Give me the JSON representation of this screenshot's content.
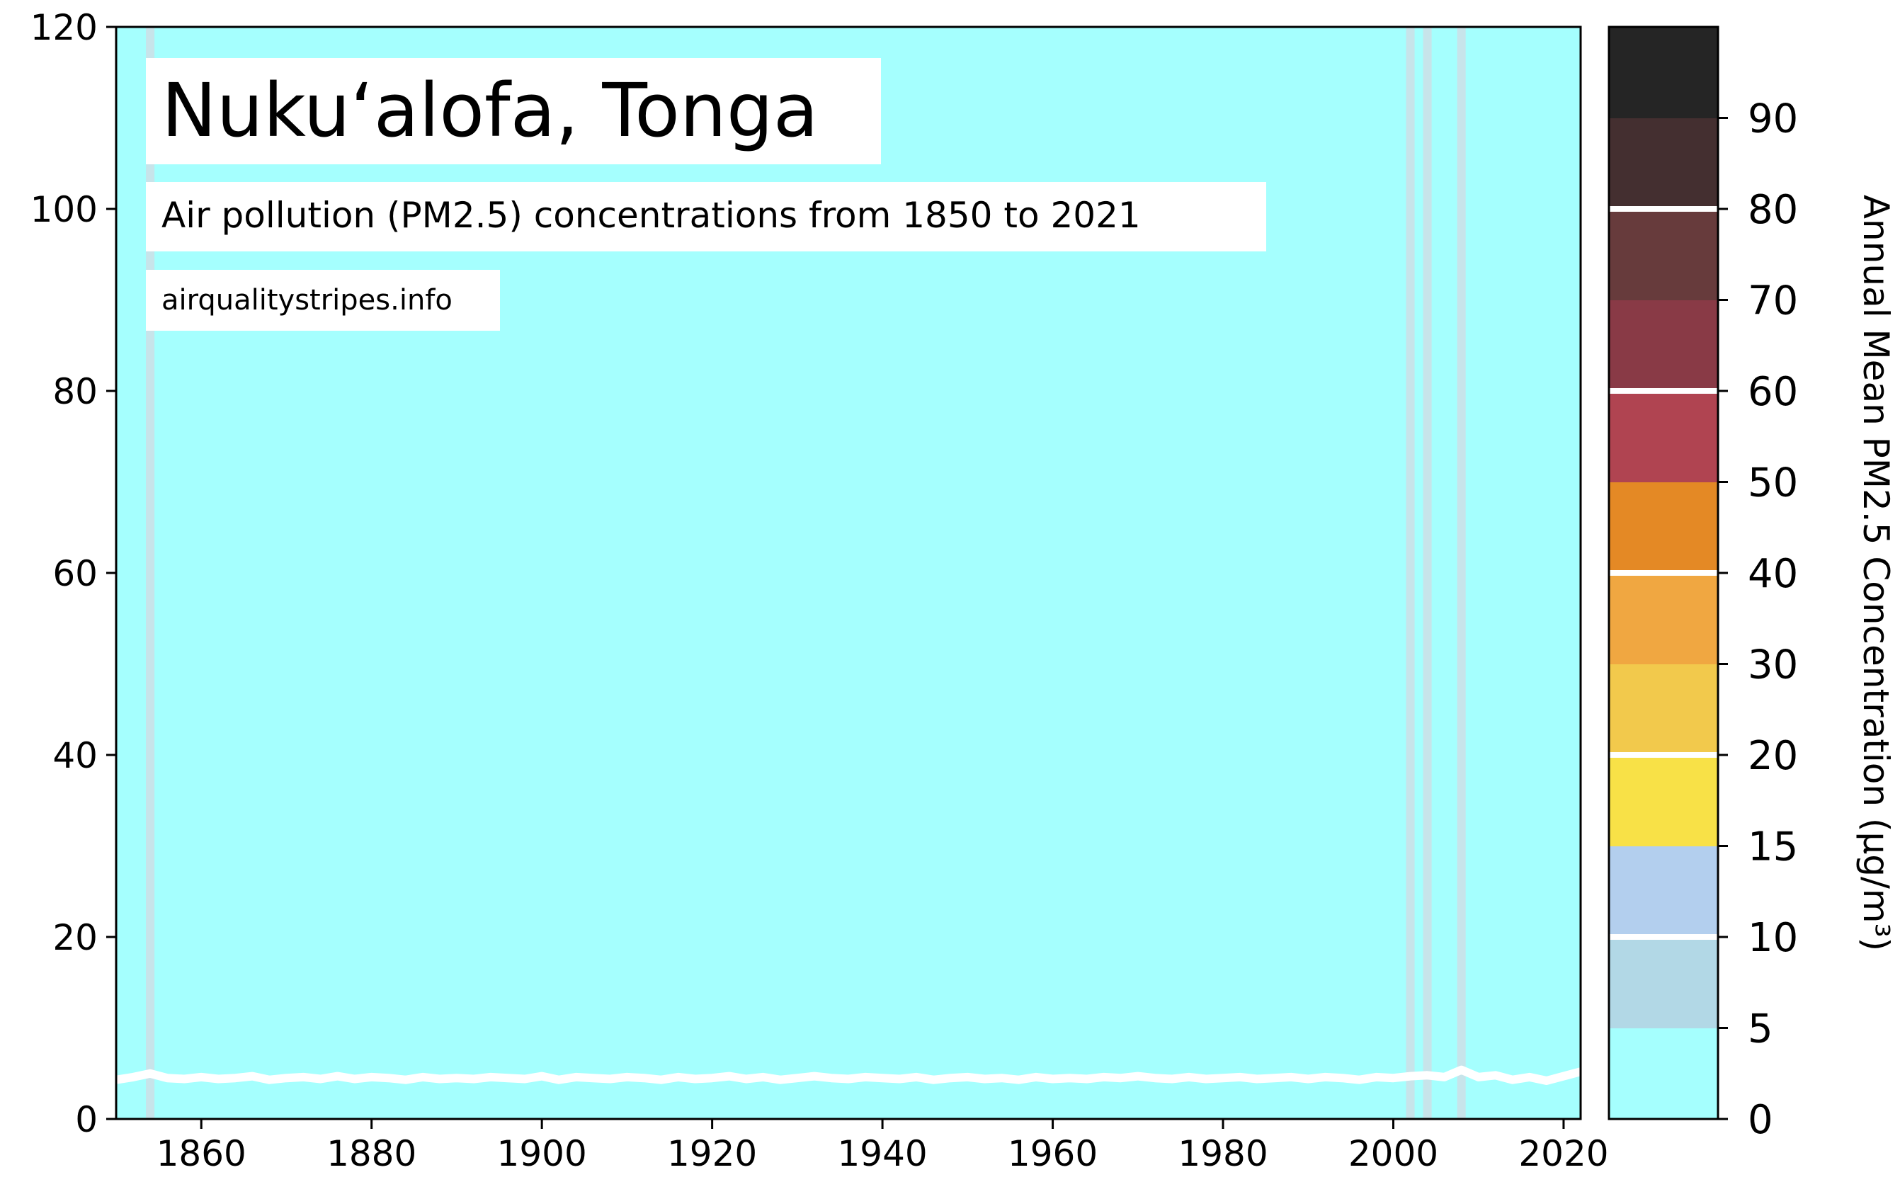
{
  "chart_data": {
    "type": "line",
    "title": "Nuku‘alofa, Tonga",
    "subtitle": "Air pollution (PM2.5) concentrations from 1850 to 2021",
    "source": "airqualitystripes.info",
    "xlabel": "",
    "ylabel": "",
    "xlim": [
      1850,
      2022
    ],
    "ylim": [
      0,
      120
    ],
    "x_ticks": [
      "1860",
      "1880",
      "1900",
      "1920",
      "1940",
      "1960",
      "1980",
      "2000",
      "2020"
    ],
    "y_ticks": [
      "0",
      "20",
      "40",
      "60",
      "80",
      "100",
      "120"
    ],
    "grid": false,
    "background_color": "#a5fffe",
    "line_color": "#ffffff",
    "highlight_stripe_color": "#c7e4ea",
    "highlight_stripes": [
      1854,
      2002,
      2004,
      2008
    ],
    "series": [
      {
        "name": "",
        "x": [
          1850,
          1852,
          1854,
          1856,
          1858,
          1860,
          1862,
          1864,
          1866,
          1868,
          1870,
          1872,
          1874,
          1876,
          1878,
          1880,
          1882,
          1884,
          1886,
          1888,
          1890,
          1892,
          1894,
          1896,
          1898,
          1900,
          1902,
          1904,
          1906,
          1908,
          1910,
          1912,
          1914,
          1916,
          1918,
          1920,
          1922,
          1924,
          1926,
          1928,
          1930,
          1932,
          1934,
          1936,
          1938,
          1940,
          1942,
          1944,
          1946,
          1948,
          1950,
          1952,
          1954,
          1956,
          1958,
          1960,
          1962,
          1964,
          1966,
          1968,
          1970,
          1972,
          1974,
          1976,
          1978,
          1980,
          1982,
          1984,
          1986,
          1988,
          1990,
          1992,
          1994,
          1996,
          1998,
          2000,
          2002,
          2004,
          2006,
          2008,
          2010,
          2012,
          2014,
          2016,
          2018,
          2020,
          2022
        ],
        "values": [
          4.3,
          4.6,
          5.0,
          4.5,
          4.4,
          4.6,
          4.4,
          4.5,
          4.7,
          4.3,
          4.5,
          4.6,
          4.4,
          4.7,
          4.4,
          4.6,
          4.5,
          4.3,
          4.6,
          4.4,
          4.5,
          4.4,
          4.6,
          4.5,
          4.4,
          4.7,
          4.3,
          4.6,
          4.5,
          4.4,
          4.6,
          4.5,
          4.3,
          4.6,
          4.4,
          4.5,
          4.7,
          4.4,
          4.6,
          4.3,
          4.5,
          4.7,
          4.5,
          4.4,
          4.6,
          4.5,
          4.4,
          4.6,
          4.3,
          4.5,
          4.6,
          4.4,
          4.5,
          4.3,
          4.6,
          4.4,
          4.5,
          4.4,
          4.6,
          4.5,
          4.7,
          4.5,
          4.4,
          4.6,
          4.4,
          4.5,
          4.6,
          4.4,
          4.5,
          4.6,
          4.4,
          4.6,
          4.5,
          4.3,
          4.6,
          4.5,
          4.7,
          4.8,
          4.6,
          5.4,
          4.6,
          4.8,
          4.3,
          4.6,
          4.2,
          4.7,
          5.2
        ]
      }
    ],
    "colorbar": {
      "label": "Annual Mean PM2.5 Concentration (μg/m³)",
      "tick_labels": [
        "0",
        "5",
        "10",
        "15",
        "20",
        "30",
        "40",
        "50",
        "60",
        "70",
        "80",
        "90"
      ],
      "colors": [
        "#a5fffe",
        "#b2d8e6",
        "#b3cfee",
        "#f8e147",
        "#f2c94c",
        "#f0a741",
        "#e48925",
        "#b04451",
        "#893a46",
        "#673b3c",
        "#442f30",
        "#252525"
      ],
      "divider_color": "#ffffff",
      "divider_after": [
        "5",
        "15",
        "30",
        "50",
        "70"
      ]
    }
  }
}
